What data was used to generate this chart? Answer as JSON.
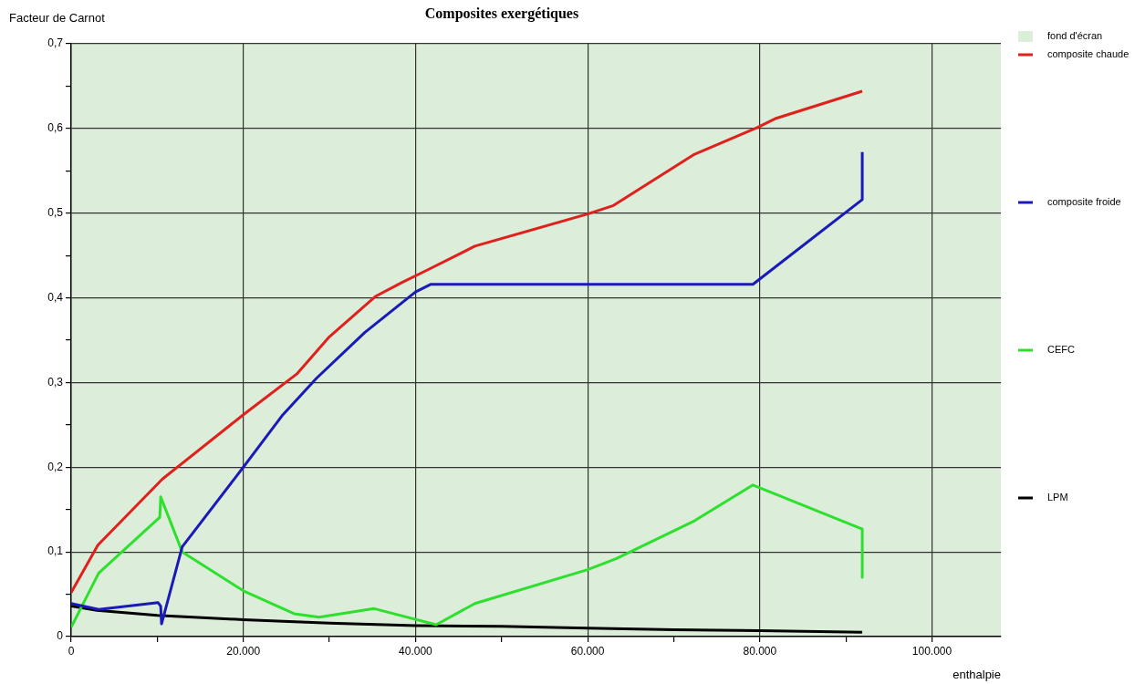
{
  "chart_data": {
    "type": "line",
    "title": "Composites exergétiques",
    "xlabel": "enthalpie",
    "ylabel": "Facteur de Carnot",
    "xlim": [
      0,
      108000
    ],
    "xticks": [
      0,
      {
        "value": 10000,
        "label": null
      },
      {
        "value": 20000,
        "label": "20.000"
      },
      {
        "value": 30000,
        "label": null
      },
      {
        "value": 40000,
        "label": "40.000"
      },
      {
        "value": 50000,
        "label": null
      },
      {
        "value": 60000,
        "label": "60.000"
      },
      {
        "value": 70000,
        "label": null
      },
      {
        "value": 80000,
        "label": "80.000"
      },
      {
        "value": 90000,
        "label": null
      },
      {
        "value": 100000,
        "label": "100.000"
      }
    ],
    "ylim": [
      0,
      0.7
    ],
    "yticks": [
      0,
      {
        "value": 0.05,
        "label": null
      },
      {
        "value": 0.1,
        "label": "0,1"
      },
      {
        "value": 0.15,
        "label": null
      },
      {
        "value": 0.2,
        "label": "0,2"
      },
      {
        "value": 0.25,
        "label": null
      },
      {
        "value": 0.3,
        "label": "0,3"
      },
      {
        "value": 0.35,
        "label": null
      },
      {
        "value": 0.4,
        "label": "0,4"
      },
      {
        "value": 0.45,
        "label": null
      },
      {
        "value": 0.5,
        "label": "0,5"
      },
      {
        "value": 0.55,
        "label": null
      },
      {
        "value": 0.6,
        "label": "0,6"
      },
      {
        "value": 0.65,
        "label": null
      },
      {
        "value": 0.7,
        "label": "0,7"
      }
    ],
    "grid": true,
    "legend": "right",
    "bands": [
      {
        "axis": "y",
        "from": 0,
        "to": 0.7,
        "label": "fond d'écran",
        "color": "#dcedd9"
      }
    ],
    "series": [
      {
        "name": "composite chaude",
        "color": "#e0201c",
        "x": [
          0,
          3100,
          10600,
          20000,
          26200,
          29900,
          35400,
          38400,
          41600,
          46900,
          60000,
          63000,
          72300,
          79700,
          81900,
          91900
        ],
        "values": [
          0.052,
          0.108,
          0.186,
          0.262,
          0.31,
          0.353,
          0.402,
          0.418,
          0.434,
          0.461,
          0.499,
          0.509,
          0.569,
          0.601,
          0.612,
          0.644
        ]
      },
      {
        "name": "composite froide",
        "color": "#1a1ab8",
        "x": [
          0,
          3200,
          10100,
          10400,
          10500,
          12900,
          20000,
          24600,
          28500,
          34100,
          40000,
          41800,
          79200,
          91900,
          91900
        ],
        "values": [
          0.039,
          0.032,
          0.04,
          0.036,
          0.015,
          0.106,
          0.2,
          0.262,
          0.305,
          0.359,
          0.407,
          0.416,
          0.416,
          0.516,
          0.572
        ]
      },
      {
        "name": "CEFC",
        "color": "#2ee02e",
        "x": [
          0,
          3200,
          10300,
          10400,
          12900,
          20000,
          25900,
          28800,
          35200,
          42400,
          46900,
          60000,
          63300,
          72300,
          79200,
          91900,
          91900
        ],
        "values": [
          0.011,
          0.075,
          0.141,
          0.165,
          0.1,
          0.054,
          0.027,
          0.023,
          0.033,
          0.014,
          0.039,
          0.079,
          0.092,
          0.136,
          0.179,
          0.127,
          0.07
        ]
      },
      {
        "name": "LPM",
        "color": "#000000",
        "x": [
          0,
          3000,
          10000,
          20000,
          30000,
          40000,
          50000,
          60000,
          70000,
          80000,
          91900
        ],
        "values": [
          0.036,
          0.031,
          0.025,
          0.02,
          0.016,
          0.013,
          0.012,
          0.01,
          0.008,
          0.007,
          0.005
        ]
      }
    ]
  }
}
